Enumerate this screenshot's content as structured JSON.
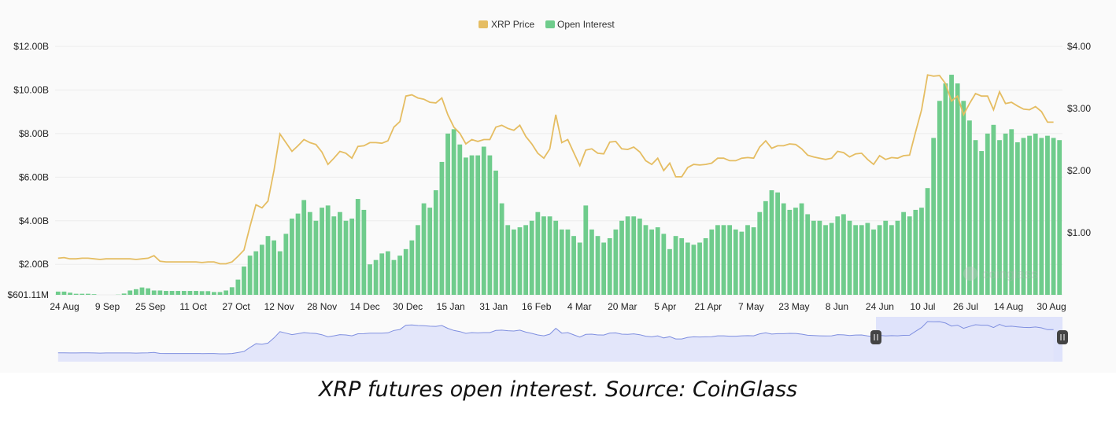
{
  "chart_data": {
    "type": "bar",
    "legend_position": "top-center",
    "grid": true,
    "series": [
      {
        "name": "XRP Price",
        "type": "line",
        "axis": "right",
        "color": "#e5bd62",
        "values": [
          0.59,
          0.6,
          0.58,
          0.58,
          0.59,
          0.59,
          0.58,
          0.57,
          0.58,
          0.58,
          0.58,
          0.58,
          0.58,
          0.57,
          0.58,
          0.59,
          0.63,
          0.54,
          0.53,
          0.53,
          0.53,
          0.53,
          0.53,
          0.53,
          0.52,
          0.53,
          0.53,
          0.5,
          0.5,
          0.53,
          0.62,
          0.72,
          1.1,
          1.45,
          1.4,
          1.51,
          2.0,
          2.59,
          2.45,
          2.31,
          2.4,
          2.5,
          2.45,
          2.42,
          2.3,
          2.1,
          2.2,
          2.31,
          2.28,
          2.2,
          2.39,
          2.4,
          2.45,
          2.45,
          2.44,
          2.48,
          2.7,
          2.79,
          3.2,
          3.22,
          3.17,
          3.15,
          3.1,
          3.09,
          3.17,
          2.9,
          2.7,
          2.6,
          2.43,
          2.5,
          2.47,
          2.5,
          2.5,
          2.7,
          2.73,
          2.68,
          2.65,
          2.73,
          2.55,
          2.43,
          2.28,
          2.2,
          2.35,
          2.9,
          2.45,
          2.5,
          2.29,
          2.08,
          2.33,
          2.35,
          2.28,
          2.27,
          2.46,
          2.47,
          2.35,
          2.34,
          2.38,
          2.3,
          2.16,
          2.1,
          2.2,
          2.0,
          2.12,
          1.9,
          1.9,
          2.05,
          2.1,
          2.09,
          2.1,
          2.12,
          2.2,
          2.2,
          2.16,
          2.16,
          2.2,
          2.21,
          2.2,
          2.38,
          2.48,
          2.36,
          2.4,
          2.4,
          2.43,
          2.42,
          2.35,
          2.25,
          2.22,
          2.2,
          2.18,
          2.2,
          2.31,
          2.29,
          2.22,
          2.27,
          2.28,
          2.18,
          2.1,
          2.24,
          2.18,
          2.21,
          2.2,
          2.24,
          2.25,
          2.62,
          2.98,
          3.54,
          3.52,
          3.53,
          3.4,
          3.12,
          3.2,
          2.9,
          3.08,
          3.24,
          3.2,
          3.2,
          2.98,
          3.27,
          3.08,
          3.1,
          3.04,
          2.99,
          2.98,
          3.03,
          2.95,
          2.78,
          2.78
        ]
      },
      {
        "name": "Open Interest",
        "type": "bar",
        "axis": "left",
        "color": "#6fcc8c",
        "values": [
          0.75,
          0.75,
          0.7,
          0.65,
          0.65,
          0.65,
          0.63,
          0.6,
          0.6,
          0.6,
          0.61,
          0.66,
          0.8,
          0.86,
          0.94,
          0.9,
          0.8,
          0.8,
          0.78,
          0.78,
          0.78,
          0.78,
          0.78,
          0.78,
          0.77,
          0.77,
          0.73,
          0.73,
          0.8,
          0.95,
          1.3,
          1.9,
          2.4,
          2.6,
          2.9,
          3.3,
          3.1,
          2.6,
          3.4,
          4.1,
          4.33,
          4.95,
          4.4,
          4.0,
          4.6,
          4.7,
          4.2,
          4.4,
          4.0,
          4.1,
          5.0,
          4.5,
          2.0,
          2.2,
          2.5,
          2.6,
          2.2,
          2.4,
          2.7,
          3.1,
          3.8,
          4.8,
          4.6,
          5.4,
          6.7,
          8.0,
          8.2,
          7.5,
          6.9,
          7.0,
          7.0,
          7.4,
          7.0,
          6.3,
          4.8,
          3.8,
          3.6,
          3.7,
          3.8,
          4.0,
          4.4,
          4.2,
          4.2,
          4.0,
          3.6,
          3.6,
          3.3,
          3.0,
          4.7,
          3.6,
          3.3,
          3.0,
          3.2,
          3.6,
          4.0,
          4.2,
          4.2,
          4.1,
          3.8,
          3.6,
          3.7,
          3.4,
          2.7,
          3.3,
          3.2,
          3.0,
          2.9,
          3.0,
          3.2,
          3.6,
          3.8,
          3.8,
          3.8,
          3.6,
          3.5,
          3.8,
          3.7,
          4.4,
          4.9,
          5.4,
          5.3,
          4.8,
          4.5,
          4.6,
          4.8,
          4.3,
          4.0,
          4.0,
          3.8,
          3.9,
          4.2,
          4.3,
          4.0,
          3.8,
          3.8,
          3.9,
          3.6,
          3.8,
          4.0,
          3.8,
          4.0,
          4.4,
          4.2,
          4.5,
          4.6,
          5.5,
          7.8,
          9.5,
          10.3,
          10.7,
          10.3,
          9.5,
          8.6,
          7.7,
          7.2,
          8.0,
          8.4,
          7.7,
          8.0,
          8.2,
          7.6,
          7.8,
          7.9,
          8.0,
          7.8,
          7.9,
          7.8,
          7.7
        ]
      }
    ],
    "y_left": {
      "min": 0.60111,
      "max": 12.0,
      "ticks": [
        "$12.00B",
        "$10.00B",
        "$8.00B",
        "$6.00B",
        "$4.00B",
        "$2.00B",
        "$601.11M"
      ],
      "tick_values": [
        12,
        10,
        8,
        6,
        4,
        2,
        0.60111
      ]
    },
    "y_right": {
      "min": 0.0,
      "max": 4.0,
      "ticks": [
        "$4.00",
        "$3.00",
        "$2.00",
        "$1.00"
      ],
      "tick_values": [
        4,
        3,
        2,
        1
      ]
    },
    "x_ticks": [
      "24 Aug",
      "9 Sep",
      "25 Sep",
      "11 Oct",
      "27 Oct",
      "12 Nov",
      "28 Nov",
      "14 Dec",
      "30 Dec",
      "15 Jan",
      "31 Jan",
      "16 Feb",
      "4 Mar",
      "20 Mar",
      "5 Apr",
      "21 Apr",
      "7 May",
      "23 May",
      "8 Jun",
      "24 Jun",
      "10 Jul",
      "26 Jul",
      "14 Aug",
      "30 Aug"
    ],
    "watermark": "coinglass"
  },
  "caption": "XRP futures open interest. Source: CoinGlass"
}
